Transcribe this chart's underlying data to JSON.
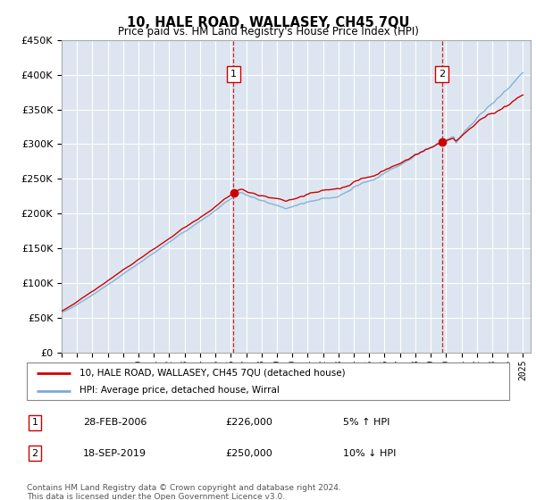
{
  "title": "10, HALE ROAD, WALLASEY, CH45 7QU",
  "subtitle": "Price paid vs. HM Land Registry's House Price Index (HPI)",
  "ylim": [
    0,
    450000
  ],
  "xlim_start": 1995.0,
  "xlim_end": 2025.5,
  "plot_bg_color": "#dde6f0",
  "grid_color": "#ffffff",
  "red_line_color": "#cc0000",
  "blue_line_color": "#7aadd4",
  "marker1_x": 2006.17,
  "marker1_y": 226000,
  "marker1_label": "1",
  "marker1_date": "28-FEB-2006",
  "marker1_price": "£226,000",
  "marker1_hpi": "5% ↑ HPI",
  "marker2_x": 2019.72,
  "marker2_y": 250000,
  "marker2_label": "2",
  "marker2_date": "18-SEP-2019",
  "marker2_price": "£250,000",
  "marker2_hpi": "10% ↓ HPI",
  "legend_line1": "10, HALE ROAD, WALLASEY, CH45 7QU (detached house)",
  "legend_line2": "HPI: Average price, detached house, Wirral",
  "footnote": "Contains HM Land Registry data © Crown copyright and database right 2024.\nThis data is licensed under the Open Government Licence v3.0."
}
